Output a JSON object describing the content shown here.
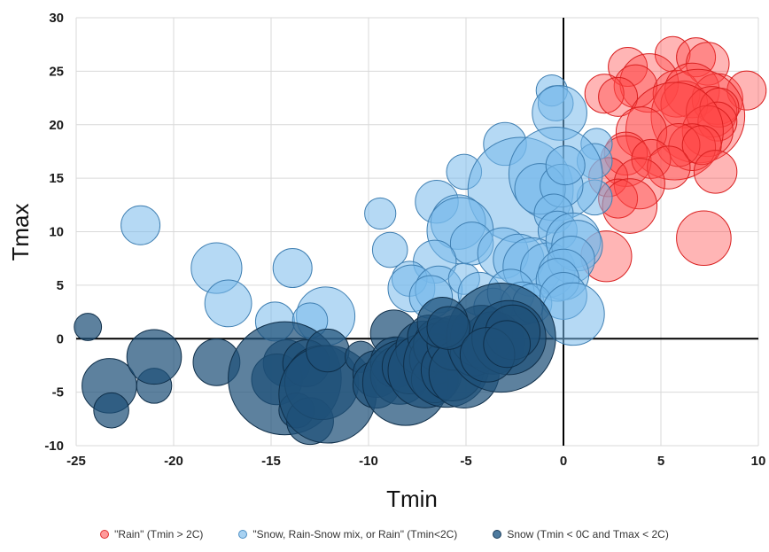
{
  "chart_data": {
    "type": "scatter",
    "subtype": "bubble",
    "xlabel": "Tmin",
    "ylabel": "Tmax",
    "xlim": [
      -25,
      10
    ],
    "ylim": [
      -10,
      30
    ],
    "xticks": [
      "-25",
      "-20",
      "-15",
      "-10",
      "-5",
      "0",
      "5",
      "10"
    ],
    "yticks": [
      "-10",
      "-5",
      "0",
      "5",
      "10",
      "15",
      "20",
      "25",
      "30"
    ],
    "grid": true,
    "legend_position": "bottom",
    "series": [
      {
        "name": "\"Rain\" (Tmin > 2C)",
        "color": "#ff3b3b",
        "points": [
          [
            5.6,
            26.6,
            0.9
          ],
          [
            6.8,
            26.3,
            1.0
          ],
          [
            7.4,
            25.7,
            1.1
          ],
          [
            3.3,
            25.4,
            1.0
          ],
          [
            4.4,
            23.9,
            1.5
          ],
          [
            3.7,
            23.6,
            1.1
          ],
          [
            2.1,
            22.9,
            1.0
          ],
          [
            2.8,
            22.6,
            1.0
          ],
          [
            5.8,
            22.9,
            1.2
          ],
          [
            6.6,
            23.2,
            1.4
          ],
          [
            7.9,
            22.4,
            1.3
          ],
          [
            9.4,
            23.2,
            1.0
          ],
          [
            6.2,
            21.9,
            1.2
          ],
          [
            6.9,
            20.8,
            2.4
          ],
          [
            7.6,
            21.2,
            1.3
          ],
          [
            8.0,
            21.6,
            1.0
          ],
          [
            7.9,
            20.3,
            1.0
          ],
          [
            7.4,
            19.4,
            1.3
          ],
          [
            5.7,
            19.4,
            2.5
          ],
          [
            4.0,
            19.3,
            1.3
          ],
          [
            6.6,
            17.9,
            1.2
          ],
          [
            5.9,
            18.1,
            1.1
          ],
          [
            7.1,
            18.1,
            1.0
          ],
          [
            3.2,
            17.3,
            1.1
          ],
          [
            3.2,
            16.6,
            1.3
          ],
          [
            4.5,
            16.8,
            1.0
          ],
          [
            7.8,
            15.6,
            1.1
          ],
          [
            5.4,
            16.0,
            1.1
          ],
          [
            2.3,
            15.1,
            1.0
          ],
          [
            3.9,
            14.5,
            1.3
          ],
          [
            2.8,
            13.1,
            1.0
          ],
          [
            3.4,
            12.4,
            1.4
          ],
          [
            7.2,
            9.4,
            1.4
          ],
          [
            2.2,
            7.7,
            1.3
          ]
        ]
      },
      {
        "name": "\"Snow, Rain-Snow mix, or Rain\" (Tmin<2C)",
        "color": "#6cb0e8",
        "points": [
          [
            -0.6,
            23.2,
            0.8
          ],
          [
            -0.4,
            22.0,
            0.9
          ],
          [
            -0.2,
            21.1,
            1.4
          ],
          [
            -3.0,
            18.2,
            1.1
          ],
          [
            1.7,
            18.2,
            0.8
          ],
          [
            1.6,
            16.6,
            0.9
          ],
          [
            1.6,
            13.2,
            0.9
          ],
          [
            -5.1,
            15.6,
            0.9
          ],
          [
            -2.2,
            13.9,
            2.7
          ],
          [
            -0.4,
            15.4,
            2.4
          ],
          [
            -1.2,
            14.0,
            1.3
          ],
          [
            -0.1,
            14.3,
            1.1
          ],
          [
            0.1,
            16.2,
            1.0
          ],
          [
            -0.5,
            11.7,
            1.0
          ],
          [
            -0.3,
            10.1,
            1.0
          ],
          [
            -6.5,
            12.8,
            1.1
          ],
          [
            -9.4,
            11.7,
            0.8
          ],
          [
            -21.7,
            10.6,
            1.0
          ],
          [
            -5.4,
            10.9,
            1.4
          ],
          [
            -5.3,
            10.1,
            1.7
          ],
          [
            -4.7,
            8.9,
            1.1
          ],
          [
            -8.9,
            8.3,
            0.9
          ],
          [
            -17.8,
            6.6,
            1.3
          ],
          [
            -13.9,
            6.6,
            1.0
          ],
          [
            -17.2,
            3.3,
            1.2
          ],
          [
            -6.6,
            7.2,
            1.1
          ],
          [
            -3.1,
            8.0,
            1.3
          ],
          [
            -2.3,
            7.4,
            1.3
          ],
          [
            -1.6,
            6.7,
            1.5
          ],
          [
            -0.8,
            6.4,
            1.4
          ],
          [
            0.5,
            9.2,
            1.4
          ],
          [
            0.7,
            8.7,
            1.3
          ],
          [
            0.4,
            7.4,
            1.2
          ],
          [
            0.0,
            6.0,
            1.3
          ],
          [
            -0.3,
            5.5,
            1.1
          ],
          [
            -7.9,
            5.6,
            0.9
          ],
          [
            -7.8,
            4.7,
            1.2
          ],
          [
            -6.4,
            4.6,
            1.2
          ],
          [
            -5.1,
            5.6,
            0.8
          ],
          [
            -4.3,
            4.2,
            1.1
          ],
          [
            -3.6,
            2.9,
            1.0
          ],
          [
            -2.7,
            4.3,
            1.2
          ],
          [
            -2.1,
            3.3,
            1.1
          ],
          [
            -1.6,
            3.3,
            1.0
          ],
          [
            0.0,
            4.0,
            1.2
          ],
          [
            0.5,
            2.3,
            1.6
          ],
          [
            -14.8,
            1.6,
            1.0
          ],
          [
            -12.2,
            2.1,
            1.5
          ],
          [
            -13.0,
            1.7,
            0.9
          ],
          [
            -6.8,
            3.9,
            1.1
          ]
        ]
      },
      {
        "name": "Snow (Tmin < 0C and Tmax < 2C)",
        "color": "#24567e",
        "points": [
          [
            -24.4,
            1.1,
            0.7
          ],
          [
            -23.3,
            -4.4,
            1.4
          ],
          [
            -23.2,
            -6.7,
            0.9
          ],
          [
            -21.0,
            -4.4,
            0.9
          ],
          [
            -21.0,
            -1.7,
            1.4
          ],
          [
            -17.8,
            -2.2,
            1.2
          ],
          [
            -14.2,
            -2.3,
            1.2
          ],
          [
            -14.7,
            -3.8,
            1.3
          ],
          [
            -14.3,
            -3.7,
            2.9
          ],
          [
            -13.7,
            -6.7,
            0.9
          ],
          [
            -13.0,
            -7.7,
            1.2
          ],
          [
            -13.2,
            -2.3,
            1.2
          ],
          [
            -12.4,
            -4.1,
            1.9
          ],
          [
            -12.1,
            -5.2,
            2.5
          ],
          [
            -12.1,
            -1.1,
            1.1
          ],
          [
            -10.4,
            -1.7,
            0.8
          ],
          [
            -9.6,
            -3.3,
            1.2
          ],
          [
            -9.6,
            -4.3,
            1.2
          ],
          [
            -8.7,
            0.5,
            1.2
          ],
          [
            -8.6,
            -2.2,
            1.3
          ],
          [
            -8.4,
            -3.4,
            1.5
          ],
          [
            -8.1,
            -4.1,
            2.2
          ],
          [
            -7.9,
            -2.6,
            1.4
          ],
          [
            -7.2,
            -0.9,
            1.4
          ],
          [
            -7.1,
            -3.0,
            1.9
          ],
          [
            -6.9,
            0.2,
            1.1
          ],
          [
            -6.6,
            -1.9,
            1.3
          ],
          [
            -6.6,
            -3.8,
            1.2
          ],
          [
            -6.3,
            -0.6,
            1.4
          ],
          [
            -6.0,
            -2.4,
            2.2
          ],
          [
            -5.7,
            -2.9,
            1.6
          ],
          [
            -5.6,
            -0.4,
            1.4
          ],
          [
            -5.1,
            -3.2,
            1.8
          ],
          [
            -4.6,
            -1.3,
            1.2
          ],
          [
            -4.2,
            0.2,
            1.6
          ],
          [
            -3.6,
            -0.4,
            1.6
          ],
          [
            -3.2,
            0.1,
            2.8
          ],
          [
            -2.8,
            0.1,
            1.9
          ],
          [
            -2.6,
            0.6,
            1.4
          ],
          [
            -6.2,
            1.5,
            1.3
          ],
          [
            -5.9,
            1.0,
            1.1
          ],
          [
            -3.9,
            -1.5,
            1.4
          ],
          [
            -2.9,
            -0.5,
            1.2
          ]
        ]
      }
    ]
  }
}
